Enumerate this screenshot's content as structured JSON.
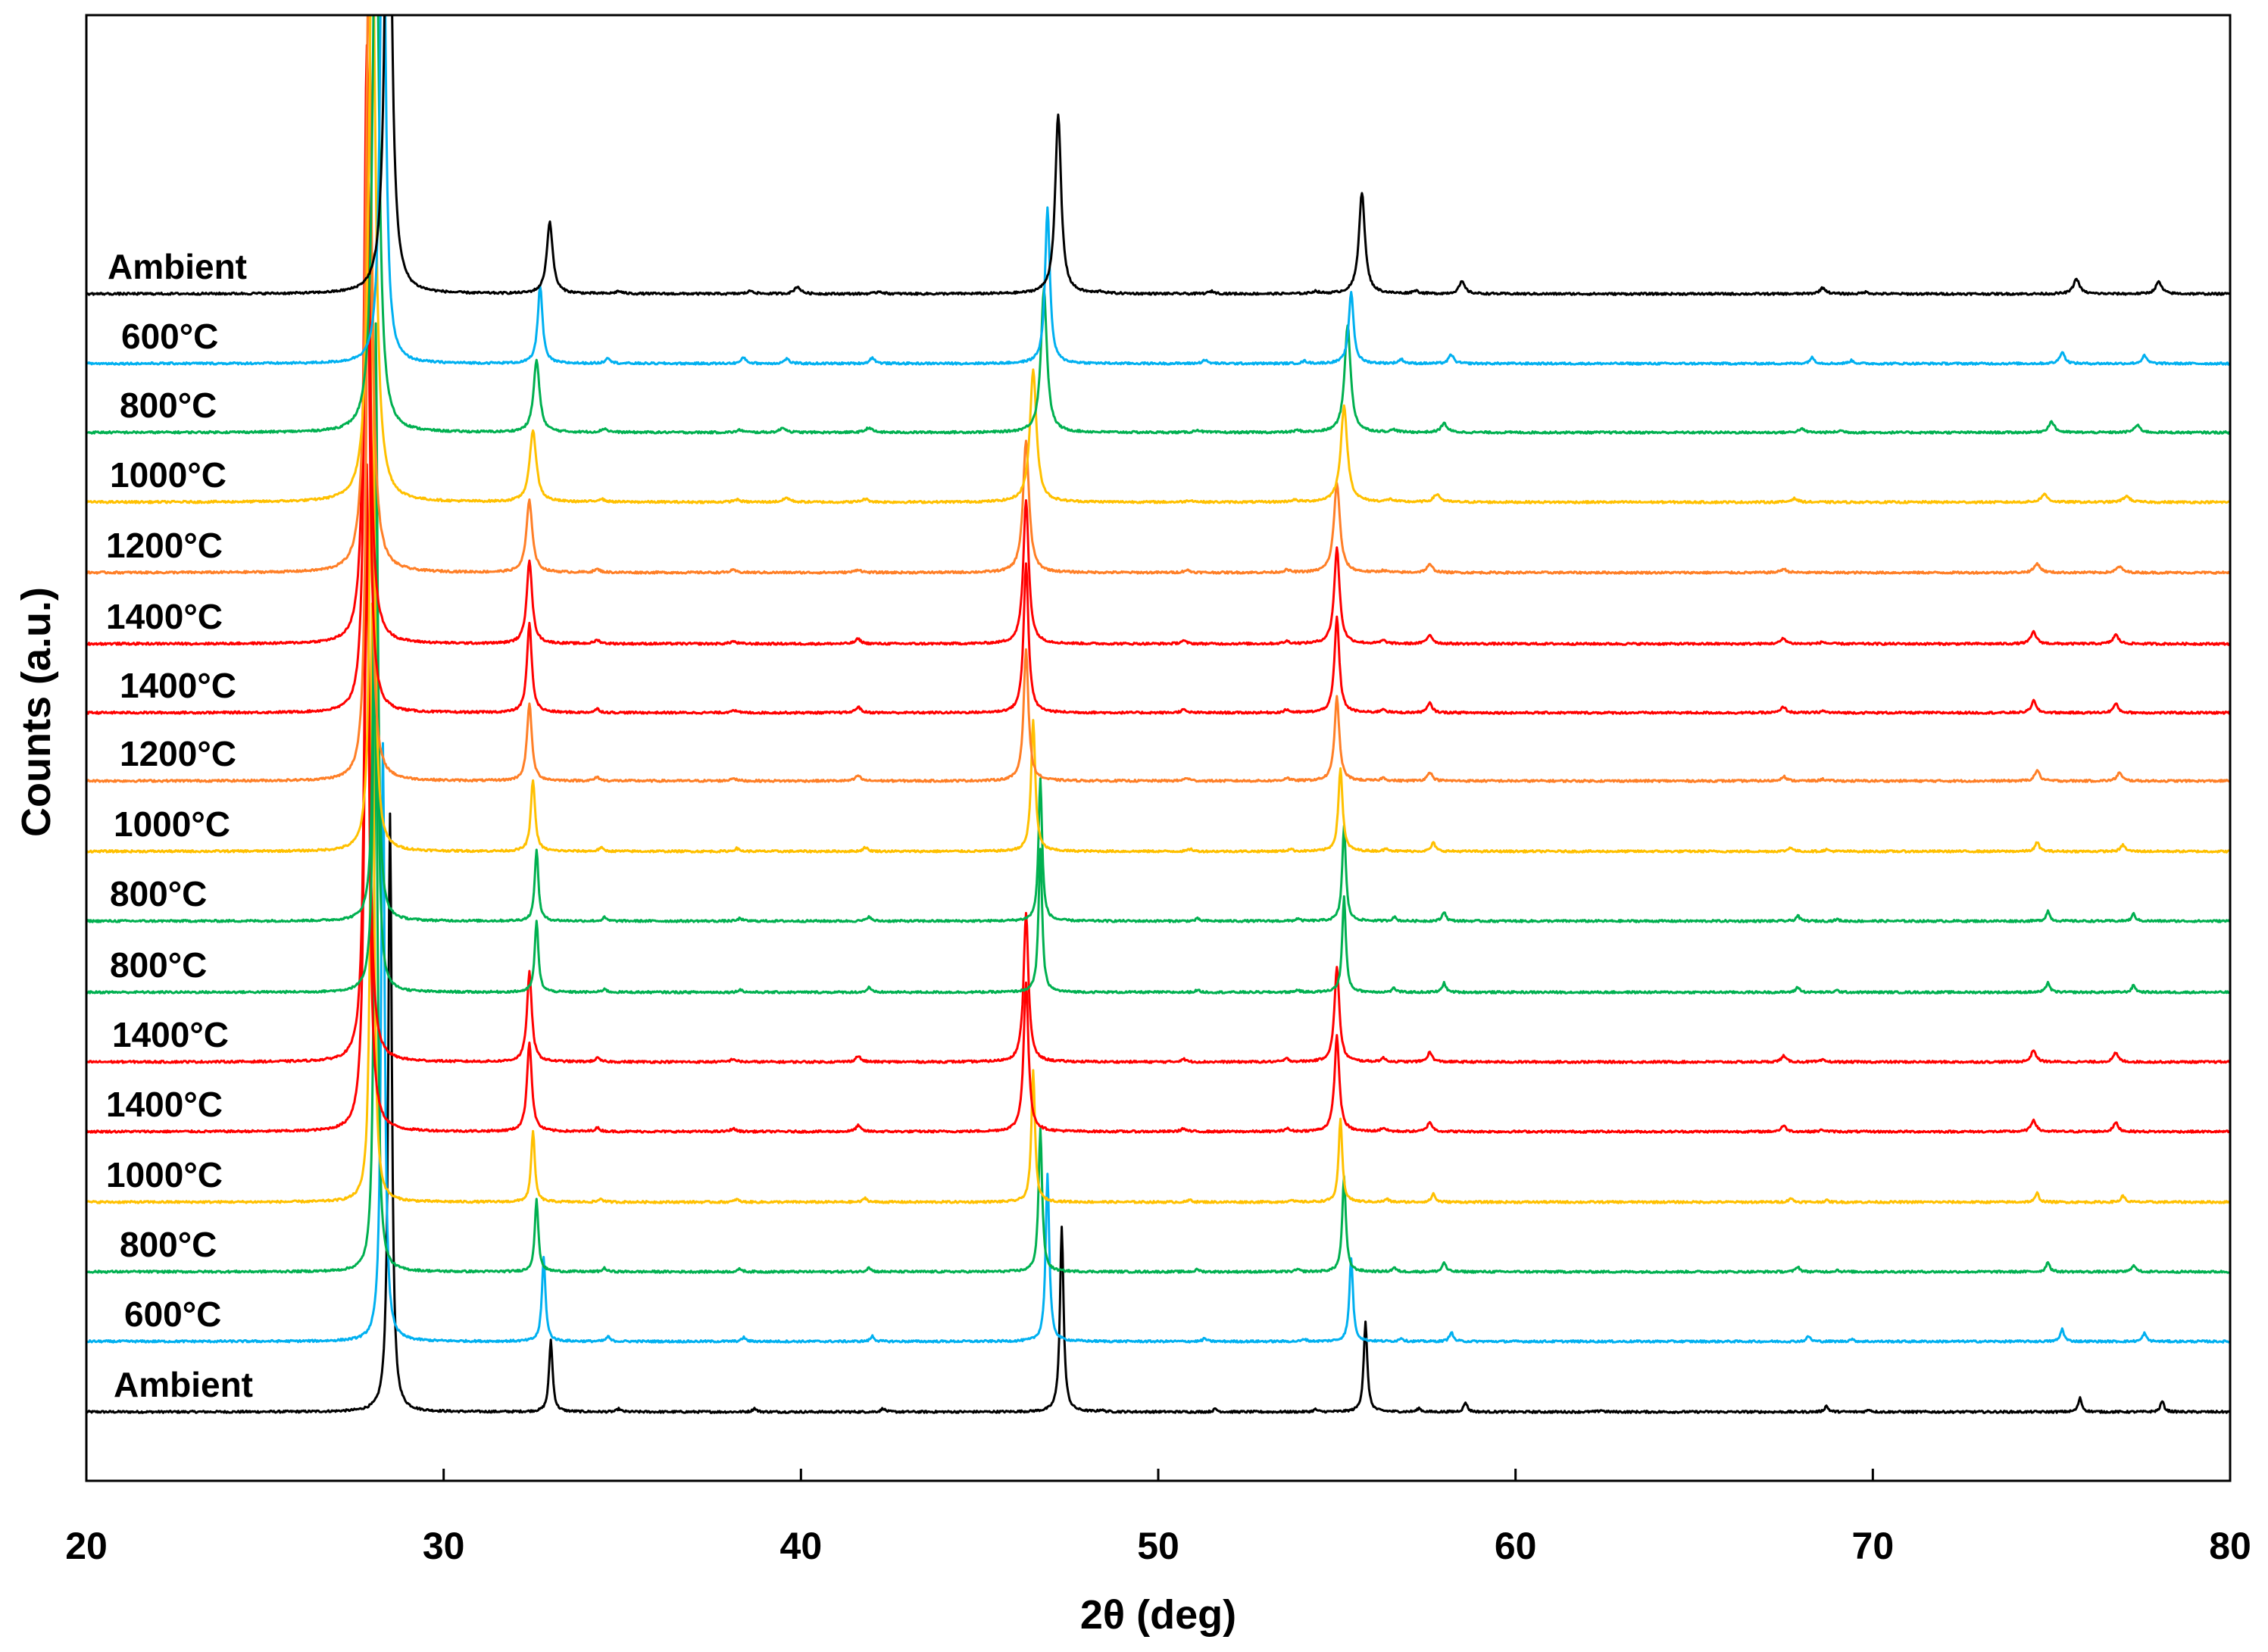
{
  "chart_data": {
    "type": "line",
    "xlabel": "2θ (deg)",
    "ylabel": "Counts (a.u.)",
    "xlim": [
      20,
      80
    ],
    "xticks": [
      20,
      30,
      40,
      50,
      60,
      70,
      80
    ],
    "y_ticks_shown": false,
    "grid": false,
    "legend": "none (labels placed at left of each stacked pattern)",
    "stacked_offset": true,
    "colors": {
      "Ambient": "#000000",
      "600°C": "#00b0f0",
      "800°C": "#00b050",
      "1000°C": "#ffc000",
      "1200°C": "#ff7f27",
      "1400°C": "#ff0000"
    },
    "series": [
      {
        "name": "Ambient",
        "color": "#000000",
        "offset": 0,
        "shift": 0.0,
        "width": 0.1,
        "peaks": [
          [
            28.45,
            100
          ],
          [
            32.97,
            12
          ],
          [
            34.9,
            0.4
          ],
          [
            38.6,
            0.5
          ],
          [
            39.9,
            1.2
          ],
          [
            42.2,
            0.4
          ],
          [
            47.2,
            30
          ],
          [
            48.4,
            0.3
          ],
          [
            51.5,
            0.4
          ],
          [
            54.4,
            0.4
          ],
          [
            55.7,
            17
          ],
          [
            57.2,
            0.5
          ],
          [
            58.5,
            2.0
          ],
          [
            68.6,
            1.0
          ],
          [
            69.8,
            0.3
          ],
          [
            75.7,
            2.5
          ],
          [
            78.0,
            2.0
          ]
        ]
      },
      {
        "name": "600°C",
        "color": "#00b0f0",
        "offset": 1,
        "shift": 0.0,
        "width": 0.08,
        "peaks": [
          [
            28.3,
            100
          ],
          [
            32.7,
            13
          ],
          [
            34.6,
            1.0
          ],
          [
            38.4,
            1.0
          ],
          [
            39.6,
            0.8
          ],
          [
            42.0,
            1.0
          ],
          [
            46.9,
            26
          ],
          [
            51.3,
            0.6
          ],
          [
            54.1,
            0.4
          ],
          [
            55.4,
            12
          ],
          [
            56.8,
            0.7
          ],
          [
            58.2,
            1.5
          ],
          [
            68.3,
            1.0
          ],
          [
            69.4,
            0.5
          ],
          [
            75.3,
            2.0
          ],
          [
            77.6,
            1.3
          ]
        ]
      },
      {
        "name": "800°C",
        "color": "#00b050",
        "offset": 2,
        "shift": 0.0,
        "width": 0.1,
        "peaks": [
          [
            28.1,
            100
          ],
          [
            32.6,
            12
          ],
          [
            34.5,
            0.6
          ],
          [
            38.3,
            0.4
          ],
          [
            39.5,
            0.8
          ],
          [
            41.9,
            0.8
          ],
          [
            46.8,
            24
          ],
          [
            51.1,
            0.4
          ],
          [
            53.9,
            0.3
          ],
          [
            55.3,
            18
          ],
          [
            56.6,
            0.4
          ],
          [
            58.0,
            1.5
          ],
          [
            68.0,
            0.6
          ],
          [
            69.1,
            0.3
          ],
          [
            75.0,
            1.8
          ],
          [
            77.4,
            1.2
          ]
        ]
      },
      {
        "name": "1000°C",
        "color": "#ffc000",
        "offset": 3,
        "shift": 0.0,
        "width": 0.11,
        "peaks": [
          [
            28.0,
            100
          ],
          [
            32.5,
            12
          ],
          [
            34.4,
            0.5
          ],
          [
            38.2,
            0.4
          ],
          [
            39.6,
            0.7
          ],
          [
            41.8,
            0.5
          ],
          [
            46.5,
            22
          ],
          [
            50.9,
            0.3
          ],
          [
            53.8,
            0.3
          ],
          [
            55.2,
            16
          ],
          [
            56.5,
            0.4
          ],
          [
            57.8,
            1.3
          ],
          [
            67.8,
            0.6
          ],
          [
            74.8,
            1.3
          ],
          [
            77.1,
            1.0
          ]
        ]
      },
      {
        "name": "1200°C",
        "color": "#ff7f27",
        "offset": 4,
        "shift": 0.0,
        "width": 0.1,
        "peaks": [
          [
            27.9,
            100
          ],
          [
            32.4,
            12
          ],
          [
            34.3,
            0.5
          ],
          [
            38.1,
            0.4
          ],
          [
            41.6,
            0.5
          ],
          [
            46.3,
            22
          ],
          [
            50.8,
            0.4
          ],
          [
            53.6,
            0.4
          ],
          [
            55.0,
            15
          ],
          [
            56.3,
            0.3
          ],
          [
            57.6,
            1.3
          ],
          [
            67.5,
            0.6
          ],
          [
            74.6,
            1.5
          ],
          [
            76.9,
            1.0
          ]
        ]
      },
      {
        "name": "1400°C",
        "color": "#ff0000",
        "offset": 5,
        "shift": 0.0,
        "width": 0.09,
        "peaks": [
          [
            27.85,
            100
          ],
          [
            32.4,
            14
          ],
          [
            34.3,
            0.6
          ],
          [
            38.1,
            0.4
          ],
          [
            41.6,
            0.8
          ],
          [
            46.3,
            24
          ],
          [
            50.7,
            0.5
          ],
          [
            53.6,
            0.4
          ],
          [
            55.0,
            16
          ],
          [
            56.3,
            0.5
          ],
          [
            57.6,
            1.5
          ],
          [
            67.5,
            0.9
          ],
          [
            68.6,
            0.3
          ],
          [
            74.5,
            2.0
          ],
          [
            76.8,
            1.5
          ]
        ]
      },
      {
        "name": "1400°C",
        "color": "#ff0000",
        "offset": 6,
        "shift": 0.0,
        "width": 0.08,
        "peaks": [
          [
            27.85,
            100
          ],
          [
            32.4,
            15
          ],
          [
            34.3,
            0.6
          ],
          [
            38.1,
            0.5
          ],
          [
            41.6,
            1.0
          ],
          [
            46.3,
            25
          ],
          [
            50.7,
            0.5
          ],
          [
            53.6,
            0.5
          ],
          [
            55.0,
            16
          ],
          [
            56.3,
            0.6
          ],
          [
            57.6,
            1.6
          ],
          [
            67.5,
            1.0
          ],
          [
            68.6,
            0.3
          ],
          [
            74.5,
            2.0
          ],
          [
            76.8,
            1.5
          ]
        ]
      },
      {
        "name": "1200°C",
        "color": "#ff7f27",
        "offset": 7,
        "shift": 0.0,
        "width": 0.08,
        "peaks": [
          [
            27.9,
            100
          ],
          [
            32.4,
            13
          ],
          [
            34.3,
            0.6
          ],
          [
            38.1,
            0.5
          ],
          [
            41.6,
            0.9
          ],
          [
            46.3,
            22
          ],
          [
            50.8,
            0.5
          ],
          [
            53.6,
            0.5
          ],
          [
            55.0,
            14
          ],
          [
            56.3,
            0.5
          ],
          [
            57.6,
            1.5
          ],
          [
            67.5,
            0.8
          ],
          [
            68.6,
            0.3
          ],
          [
            74.6,
            1.8
          ],
          [
            76.9,
            1.4
          ]
        ]
      },
      {
        "name": "1000°C",
        "color": "#ffc000",
        "offset": 8,
        "shift": 0.0,
        "width": 0.07,
        "peaks": [
          [
            28.0,
            100
          ],
          [
            32.5,
            12
          ],
          [
            34.4,
            0.6
          ],
          [
            38.2,
            0.5
          ],
          [
            41.8,
            0.7
          ],
          [
            46.5,
            22
          ],
          [
            50.9,
            0.4
          ],
          [
            53.7,
            0.4
          ],
          [
            55.1,
            14
          ],
          [
            56.4,
            0.5
          ],
          [
            57.7,
            1.4
          ],
          [
            67.7,
            0.7
          ],
          [
            68.7,
            0.3
          ],
          [
            74.6,
            1.5
          ],
          [
            77.0,
            1.1
          ]
        ]
      },
      {
        "name": "800°C",
        "color": "#00b050",
        "offset": 9,
        "shift": 0.0,
        "width": 0.06,
        "peaks": [
          [
            28.1,
            100
          ],
          [
            32.6,
            12
          ],
          [
            34.5,
            0.6
          ],
          [
            38.3,
            0.5
          ],
          [
            41.9,
            0.8
          ],
          [
            46.7,
            24
          ],
          [
            51.1,
            0.4
          ],
          [
            53.9,
            0.4
          ],
          [
            55.2,
            16
          ],
          [
            56.6,
            0.7
          ],
          [
            58.0,
            1.6
          ],
          [
            67.9,
            0.9
          ],
          [
            69.0,
            0.3
          ],
          [
            74.9,
            1.7
          ],
          [
            77.3,
            1.2
          ]
        ]
      },
      {
        "name": "800°C",
        "color": "#00b050",
        "offset": 10,
        "shift": 0.0,
        "width": 0.06,
        "peaks": [
          [
            28.1,
            100
          ],
          [
            32.6,
            12
          ],
          [
            34.5,
            0.6
          ],
          [
            38.3,
            0.5
          ],
          [
            41.9,
            0.8
          ],
          [
            46.7,
            24
          ],
          [
            51.1,
            0.4
          ],
          [
            53.9,
            0.4
          ],
          [
            55.2,
            16
          ],
          [
            56.6,
            0.7
          ],
          [
            58.0,
            1.6
          ],
          [
            67.9,
            0.9
          ],
          [
            69.0,
            0.3
          ],
          [
            74.9,
            1.7
          ],
          [
            77.3,
            1.2
          ]
        ]
      },
      {
        "name": "1400°C",
        "color": "#ff0000",
        "offset": 11,
        "shift": 0.0,
        "width": 0.08,
        "peaks": [
          [
            27.85,
            100
          ],
          [
            32.4,
            15
          ],
          [
            34.3,
            0.6
          ],
          [
            38.1,
            0.5
          ],
          [
            41.6,
            1.0
          ],
          [
            46.3,
            25
          ],
          [
            50.7,
            0.5
          ],
          [
            53.6,
            0.5
          ],
          [
            55.0,
            16
          ],
          [
            56.3,
            0.6
          ],
          [
            57.6,
            1.6
          ],
          [
            67.5,
            1.0
          ],
          [
            68.6,
            0.3
          ],
          [
            74.5,
            2.0
          ],
          [
            76.8,
            1.5
          ]
        ]
      },
      {
        "name": "1400°C",
        "color": "#ff0000",
        "offset": 12,
        "shift": 0.0,
        "width": 0.08,
        "peaks": [
          [
            27.85,
            100
          ],
          [
            32.4,
            15
          ],
          [
            34.3,
            0.6
          ],
          [
            38.1,
            0.5
          ],
          [
            41.6,
            1.0
          ],
          [
            46.3,
            25
          ],
          [
            50.7,
            0.5
          ],
          [
            53.6,
            0.5
          ],
          [
            55.0,
            16
          ],
          [
            56.3,
            0.6
          ],
          [
            57.6,
            1.6
          ],
          [
            67.5,
            1.0
          ],
          [
            68.6,
            0.3
          ],
          [
            74.5,
            2.0
          ],
          [
            76.8,
            1.5
          ]
        ]
      },
      {
        "name": "1000°C",
        "color": "#ffc000",
        "offset": 13,
        "shift": 0.0,
        "width": 0.06,
        "peaks": [
          [
            28.0,
            100
          ],
          [
            32.5,
            12
          ],
          [
            34.4,
            0.6
          ],
          [
            38.2,
            0.5
          ],
          [
            41.8,
            0.7
          ],
          [
            46.5,
            22
          ],
          [
            50.9,
            0.4
          ],
          [
            53.7,
            0.4
          ],
          [
            55.1,
            14
          ],
          [
            56.4,
            0.5
          ],
          [
            57.7,
            1.4
          ],
          [
            67.7,
            0.7
          ],
          [
            68.7,
            0.3
          ],
          [
            74.6,
            1.5
          ],
          [
            77.0,
            1.1
          ]
        ]
      },
      {
        "name": "800°C",
        "color": "#00b050",
        "offset": 14,
        "shift": 0.0,
        "width": 0.06,
        "peaks": [
          [
            28.1,
            100
          ],
          [
            32.6,
            12
          ],
          [
            34.5,
            0.6
          ],
          [
            38.3,
            0.5
          ],
          [
            41.9,
            0.8
          ],
          [
            46.7,
            24
          ],
          [
            51.1,
            0.4
          ],
          [
            53.9,
            0.4
          ],
          [
            55.2,
            16
          ],
          [
            56.6,
            0.7
          ],
          [
            58.0,
            1.6
          ],
          [
            67.9,
            0.9
          ],
          [
            69.0,
            0.3
          ],
          [
            74.9,
            1.7
          ],
          [
            77.3,
            1.2
          ]
        ]
      },
      {
        "name": "600°C",
        "color": "#00b0f0",
        "offset": 15,
        "shift": 0.0,
        "width": 0.06,
        "peaks": [
          [
            28.3,
            100
          ],
          [
            32.8,
            14
          ],
          [
            34.6,
            0.8
          ],
          [
            38.4,
            0.7
          ],
          [
            42.0,
            0.9
          ],
          [
            46.9,
            28
          ],
          [
            51.3,
            0.5
          ],
          [
            54.1,
            0.4
          ],
          [
            55.4,
            14
          ],
          [
            56.8,
            0.6
          ],
          [
            58.2,
            1.6
          ],
          [
            68.2,
            0.9
          ],
          [
            69.4,
            0.4
          ],
          [
            75.3,
            2.1
          ],
          [
            77.6,
            1.4
          ]
        ]
      },
      {
        "name": "Ambient",
        "color": "#000000",
        "offset": 16,
        "shift": 0.0,
        "width": 0.06,
        "peaks": [
          [
            28.5,
            100
          ],
          [
            33.0,
            12
          ],
          [
            34.9,
            0.5
          ],
          [
            38.7,
            0.6
          ],
          [
            42.3,
            0.6
          ],
          [
            47.3,
            31
          ],
          [
            48.4,
            0.3
          ],
          [
            51.6,
            0.5
          ],
          [
            54.4,
            0.4
          ],
          [
            55.8,
            15
          ],
          [
            57.3,
            0.6
          ],
          [
            58.6,
            1.6
          ],
          [
            62.4,
            0.3
          ],
          [
            68.7,
            1.0
          ],
          [
            69.9,
            0.4
          ],
          [
            75.8,
            2.3
          ],
          [
            78.1,
            1.8
          ]
        ]
      }
    ]
  }
}
